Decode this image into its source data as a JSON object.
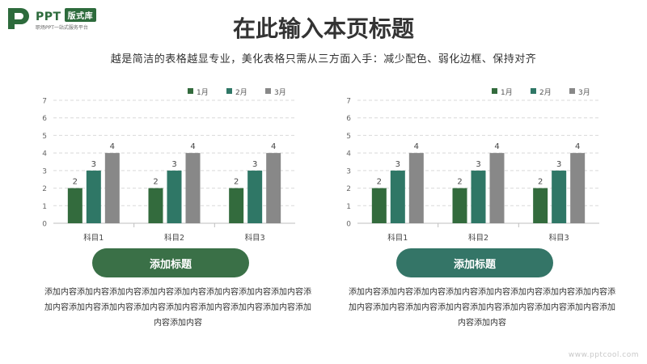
{
  "logo": {
    "name": "PPT",
    "badge": "版式库",
    "tagline": "职场PPT一站式服务平台"
  },
  "header": {
    "title": "在此输入本页标题",
    "subtitle": "越是简洁的表格越显专业，美化表格只需从三方面入手：减少配色、弱化边框、保持对齐"
  },
  "panels": [
    {
      "button_label": "添加标题",
      "button_color": "#3a7047",
      "description": "添加内容添加内容添加内容添加内容添加内容添加内容添加内容添加内容添加内容添加内容添加内容添加内容添加内容添加内容添加内容添加内容添加内容添加内容"
    },
    {
      "button_label": "添加标题",
      "button_color": "#347567",
      "description": "添加内容添加内容添加内容添加内容添加内容添加内容添加内容添加内容添加内容添加内容添加内容添加内容添加内容添加内容添加内容添加内容添加内容添加内容"
    }
  ],
  "chart_data": [
    {
      "type": "bar",
      "categories": [
        "科目1",
        "科目2",
        "科目3"
      ],
      "series": [
        {
          "name": "1月",
          "values": [
            2,
            2,
            2
          ],
          "color": "#336b3d"
        },
        {
          "name": "2月",
          "values": [
            3,
            3,
            3
          ],
          "color": "#2f7766"
        },
        {
          "name": "3月",
          "values": [
            4,
            4,
            4
          ],
          "color": "#888888"
        }
      ],
      "ylim": [
        0,
        7
      ],
      "yticks": [
        0,
        1,
        2,
        3,
        4,
        5,
        6,
        7
      ],
      "grid": true,
      "legend": "top-right",
      "data_labels": true
    },
    {
      "type": "bar",
      "categories": [
        "科目1",
        "科目2",
        "科目3"
      ],
      "series": [
        {
          "name": "1月",
          "values": [
            2,
            2,
            2
          ],
          "color": "#336b3d"
        },
        {
          "name": "2月",
          "values": [
            3,
            3,
            3
          ],
          "color": "#2f7766"
        },
        {
          "name": "3月",
          "values": [
            4,
            4,
            4
          ],
          "color": "#888888"
        }
      ],
      "ylim": [
        0,
        7
      ],
      "yticks": [
        0,
        1,
        2,
        3,
        4,
        5,
        6,
        7
      ],
      "grid": true,
      "legend": "top-right",
      "data_labels": true
    }
  ],
  "watermark": "www.pptcool.com"
}
